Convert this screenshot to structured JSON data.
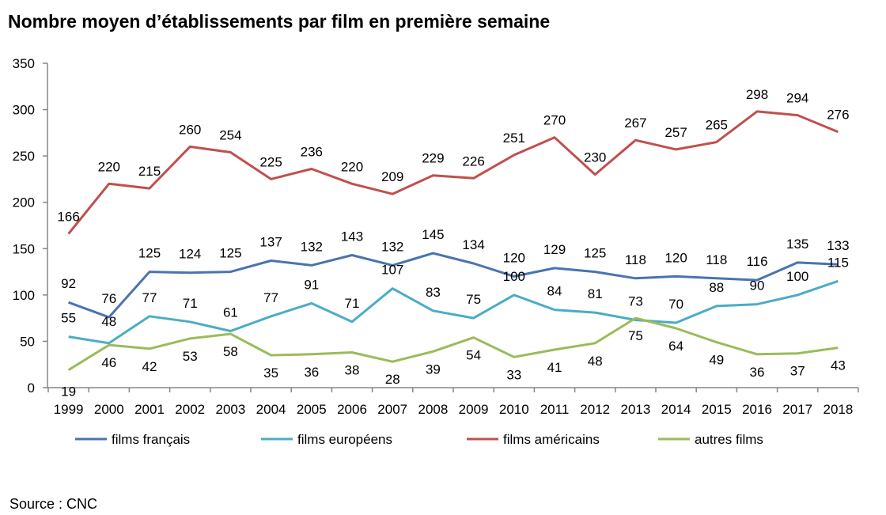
{
  "chart_data": {
    "type": "line",
    "title": "Nombre moyen d’établissements par film en première semaine",
    "source": "Source : CNC",
    "categories": [
      "1999",
      "2000",
      "2001",
      "2002",
      "2003",
      "2004",
      "2005",
      "2006",
      "2007",
      "2008",
      "2009",
      "2010",
      "2011",
      "2012",
      "2013",
      "2014",
      "2015",
      "2016",
      "2017",
      "2018"
    ],
    "ylim": [
      0,
      350
    ],
    "yticks": [
      0,
      50,
      100,
      150,
      200,
      250,
      300,
      350
    ],
    "grid": false,
    "legend_position": "bottom",
    "series": [
      {
        "name": "films français",
        "color": "#4a73b0",
        "values": [
          92,
          76,
          125,
          124,
          125,
          137,
          132,
          143,
          132,
          145,
          134,
          120,
          129,
          125,
          118,
          120,
          118,
          116,
          135,
          133
        ]
      },
      {
        "name": "films européens",
        "color": "#4bacc6",
        "values": [
          55,
          48,
          77,
          71,
          61,
          77,
          91,
          71,
          107,
          83,
          75,
          100,
          84,
          81,
          73,
          70,
          88,
          90,
          100,
          115
        ]
      },
      {
        "name": "films américains",
        "color": "#c0504d",
        "values": [
          166,
          220,
          215,
          260,
          254,
          225,
          236,
          220,
          209,
          229,
          226,
          251,
          270,
          230,
          267,
          257,
          265,
          298,
          294,
          276
        ]
      },
      {
        "name": "autres films",
        "color": "#9bbb59",
        "values": [
          19,
          46,
          42,
          53,
          58,
          35,
          36,
          38,
          28,
          39,
          54,
          33,
          41,
          48,
          75,
          64,
          49,
          36,
          37,
          43
        ]
      }
    ]
  }
}
